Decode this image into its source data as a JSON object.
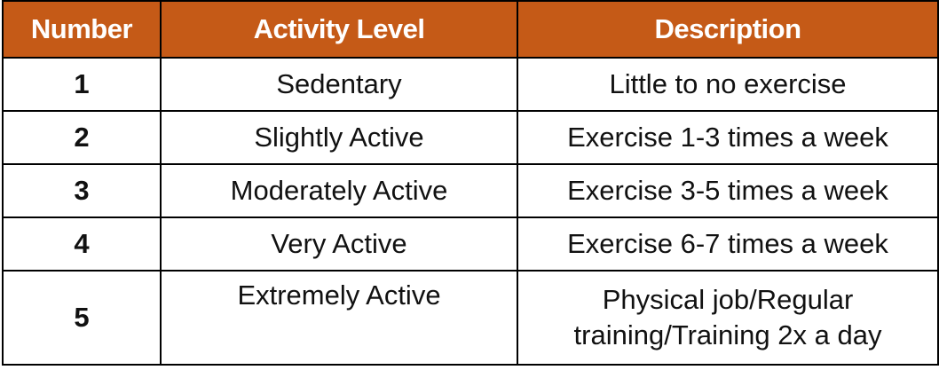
{
  "table": {
    "headers": [
      "Number",
      "Activity Level",
      "Description"
    ],
    "rows": [
      {
        "number": "1",
        "level": "Sedentary",
        "description": "Little to no exercise"
      },
      {
        "number": "2",
        "level": "Slightly Active",
        "description": "Exercise 1-3 times a week"
      },
      {
        "number": "3",
        "level": "Moderately Active",
        "description": "Exercise 3-5 times a week"
      },
      {
        "number": "4",
        "level": "Very Active",
        "description": "Exercise 6-7 times a week"
      },
      {
        "number": "5",
        "level": "Extremely Active",
        "description_line1": "Physical job/Regular",
        "description_line2": "training/Training 2x a day"
      }
    ]
  },
  "colors": {
    "header_bg": "#c55a17",
    "header_text": "#ffffff",
    "border": "#000000"
  }
}
